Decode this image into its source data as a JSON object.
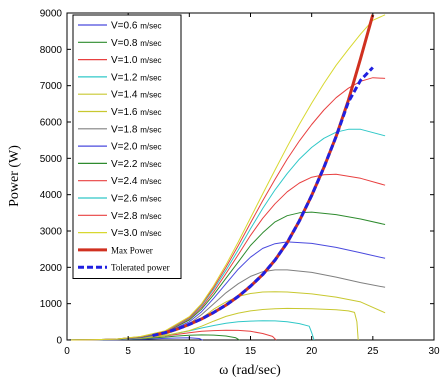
{
  "chart_data": {
    "type": "line",
    "xlabel": "ω (rad/sec)",
    "ylabel": "Power (W)",
    "xlim": [
      0,
      30
    ],
    "ylim": [
      0,
      9000
    ],
    "xticks": [
      "0",
      "5",
      "10",
      "15",
      "20",
      "25",
      "30"
    ],
    "yticks": [
      "0",
      "1000",
      "2000",
      "3000",
      "4000",
      "5000",
      "6000",
      "7000",
      "8000",
      "9000"
    ],
    "grid": false,
    "legend_position": "top-left",
    "series": [
      {
        "name": "V=0.6 m/sec",
        "color": "#4a4ade",
        "style": "solid",
        "x": [
          0,
          2,
          4,
          6,
          7,
          8,
          9,
          10,
          10.8,
          11.0,
          11.1
        ],
        "y": [
          0,
          2,
          8,
          20,
          30,
          45,
          55,
          60,
          40,
          10,
          0
        ]
      },
      {
        "name": "V=0.8 m/sec",
        "color": "#2e8b2e",
        "style": "solid",
        "x": [
          0,
          2,
          4,
          6,
          8,
          9,
          10,
          11,
          12,
          13,
          13.8,
          14.0,
          14.1
        ],
        "y": [
          0,
          5,
          15,
          35,
          80,
          110,
          130,
          140,
          135,
          110,
          60,
          20,
          0
        ]
      },
      {
        "name": "V=1.0 m/sec",
        "color": "#e84040",
        "style": "solid",
        "x": [
          0,
          2,
          4,
          6,
          8,
          10,
          11,
          12,
          13,
          14,
          15,
          16,
          16.8,
          17.0,
          17.1
        ],
        "y": [
          0,
          5,
          20,
          50,
          110,
          200,
          240,
          260,
          270,
          265,
          240,
          180,
          100,
          30,
          0
        ]
      },
      {
        "name": "V=1.2 m/sec",
        "color": "#30c8c8",
        "style": "solid",
        "x": [
          0,
          2,
          4,
          6,
          8,
          10,
          11,
          12,
          13,
          14,
          15,
          16,
          17,
          18,
          19,
          19.8,
          20.0,
          20.2
        ],
        "y": [
          0,
          5,
          20,
          50,
          120,
          250,
          330,
          400,
          460,
          500,
          520,
          530,
          525,
          500,
          450,
          380,
          200,
          0
        ]
      },
      {
        "name": "V=1.4 m/sec",
        "color": "#c8c830",
        "style": "solid",
        "x": [
          0,
          2,
          4,
          6,
          8,
          10,
          11,
          12,
          13,
          14,
          15,
          16,
          17,
          18,
          20,
          22,
          23,
          23.5,
          23.7,
          23.8
        ],
        "y": [
          0,
          5,
          20,
          50,
          120,
          260,
          380,
          520,
          650,
          740,
          800,
          840,
          860,
          870,
          860,
          830,
          800,
          760,
          500,
          0
        ]
      },
      {
        "name": "V=1.6 m/sec",
        "color": "#c8c830",
        "style": "solid",
        "x": [
          0,
          2,
          4,
          6,
          8,
          10,
          11,
          12,
          13,
          14,
          15,
          16,
          17,
          18,
          20,
          22,
          24,
          26
        ],
        "y": [
          0,
          5,
          20,
          60,
          150,
          400,
          600,
          850,
          1050,
          1200,
          1280,
          1320,
          1330,
          1320,
          1270,
          1180,
          1050,
          750
        ]
      },
      {
        "name": "V=1.8 m/sec",
        "color": "#808080",
        "style": "solid",
        "x": [
          0,
          2,
          4,
          6,
          8,
          10,
          11,
          12,
          13,
          14,
          15,
          16,
          17,
          18,
          20,
          22,
          24,
          26
        ],
        "y": [
          0,
          5,
          20,
          60,
          170,
          450,
          700,
          1000,
          1300,
          1550,
          1750,
          1880,
          1930,
          1930,
          1860,
          1730,
          1580,
          1450
        ]
      },
      {
        "name": "V=2.0 m/sec",
        "color": "#4a4ade",
        "style": "solid",
        "x": [
          0,
          2,
          4,
          6,
          8,
          10,
          11,
          12,
          13,
          14,
          15,
          16,
          17,
          18,
          20,
          22,
          24,
          26
        ],
        "y": [
          0,
          5,
          20,
          70,
          190,
          500,
          780,
          1150,
          1550,
          1950,
          2280,
          2520,
          2650,
          2700,
          2660,
          2550,
          2400,
          2250
        ]
      },
      {
        "name": "V=2.2 m/sec",
        "color": "#2e8b2e",
        "style": "solid",
        "x": [
          0,
          2,
          4,
          6,
          8,
          10,
          11,
          12,
          13,
          14,
          15,
          16,
          17,
          18,
          19,
          20,
          22,
          24,
          26
        ],
        "y": [
          0,
          5,
          25,
          80,
          210,
          550,
          850,
          1250,
          1700,
          2150,
          2600,
          2950,
          3250,
          3420,
          3500,
          3520,
          3450,
          3330,
          3180
        ]
      },
      {
        "name": "V=2.4 m/sec",
        "color": "#e84040",
        "style": "solid",
        "x": [
          0,
          2,
          4,
          6,
          8,
          10,
          11,
          12,
          13,
          14,
          15,
          16,
          17,
          18,
          19,
          20,
          21,
          22,
          24,
          26
        ],
        "y": [
          0,
          5,
          25,
          85,
          220,
          580,
          900,
          1330,
          1830,
          2350,
          2880,
          3350,
          3750,
          4080,
          4320,
          4480,
          4550,
          4560,
          4450,
          4260
        ]
      },
      {
        "name": "V=2.6 m/sec",
        "color": "#30c8c8",
        "style": "solid",
        "x": [
          0,
          2,
          4,
          6,
          8,
          10,
          11,
          12,
          13,
          14,
          15,
          16,
          17,
          18,
          19,
          20,
          21,
          22,
          23,
          24,
          26
        ],
        "y": [
          0,
          5,
          25,
          90,
          230,
          600,
          950,
          1400,
          1920,
          2480,
          3060,
          3620,
          4130,
          4580,
          4980,
          5300,
          5550,
          5720,
          5800,
          5800,
          5620
        ]
      },
      {
        "name": "V=2.8 m/sec",
        "color": "#e84040",
        "style": "solid",
        "x": [
          0,
          2,
          4,
          6,
          8,
          10,
          11,
          12,
          13,
          14,
          15,
          16,
          17,
          18,
          19,
          20,
          21,
          22,
          23,
          24,
          25,
          26
        ],
        "y": [
          0,
          5,
          25,
          90,
          240,
          620,
          980,
          1450,
          2000,
          2600,
          3220,
          3830,
          4420,
          4980,
          5480,
          5930,
          6330,
          6670,
          6930,
          7120,
          7220,
          7200
        ]
      },
      {
        "name": "V=3.0 m/sec",
        "color": "#d8d830",
        "style": "solid",
        "x": [
          0,
          2,
          4,
          6,
          8,
          10,
          11,
          12,
          13,
          14,
          15,
          16,
          17,
          18,
          19,
          20,
          21,
          22,
          23,
          24,
          25,
          26
        ],
        "y": [
          0,
          5,
          25,
          95,
          250,
          640,
          1000,
          1500,
          2070,
          2700,
          3360,
          4020,
          4680,
          5320,
          5940,
          6520,
          7060,
          7560,
          8000,
          8420,
          8800,
          8950
        ]
      },
      {
        "name": "Max Power",
        "color": "#d03020",
        "style": "solid",
        "width": 3,
        "x": [
          7,
          8,
          9,
          10,
          11,
          12,
          13,
          14,
          15,
          16,
          17,
          18,
          19,
          20,
          21,
          22,
          23,
          24,
          25
        ],
        "y": [
          120,
          200,
          300,
          430,
          580,
          760,
          960,
          1200,
          1480,
          1800,
          2200,
          2680,
          3280,
          3980,
          4750,
          5600,
          6600,
          7750,
          8950
        ]
      },
      {
        "name": "Tolerated power",
        "color": "#2020e0",
        "style": "dashed",
        "width": 3,
        "x": [
          7,
          8,
          9,
          10,
          11,
          12,
          13,
          14,
          15,
          16,
          17,
          18,
          19,
          20,
          21,
          22,
          23,
          24,
          25
        ],
        "y": [
          120,
          200,
          300,
          430,
          580,
          760,
          960,
          1200,
          1480,
          1800,
          2200,
          2680,
          3280,
          3980,
          4750,
          5600,
          6550,
          7150,
          7500
        ]
      }
    ]
  }
}
